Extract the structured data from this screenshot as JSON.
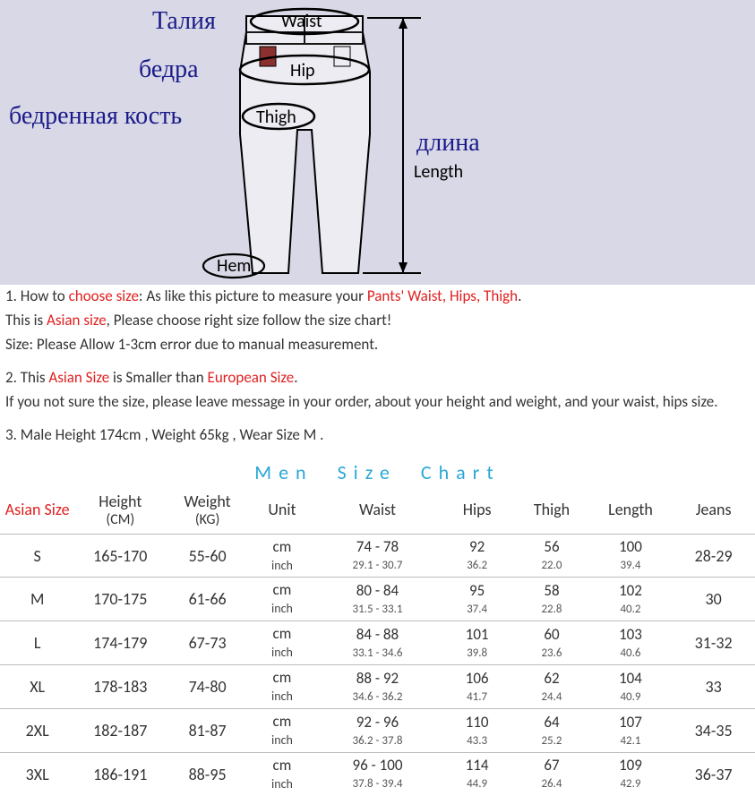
{
  "diagram": {
    "bg": "#d8d8e6",
    "labels": {
      "waist_ru": "Талия",
      "waist_en": "Waist",
      "hip_ru": "бедра",
      "hip_en": "Hip",
      "thigh_ru": "бедренная кость",
      "thigh_en": "Thigh",
      "length_ru": "длина",
      "length_en": "Length",
      "hem_en": "Hem"
    }
  },
  "notes": {
    "n1a": "1. How to ",
    "n1b": "choose size",
    "n1c": ": As like this picture to measure your ",
    "n1d": "Pants' Waist, Hips, Thigh",
    "n1e": ".",
    "n2a": "This is ",
    "n2b": "Asian size",
    "n2c": ", Please choose right size follow the size chart!",
    "n3": "Size: Please Allow 1-3cm error due to manual measurement.",
    "n4a": "2. This ",
    "n4b": "Asian Size",
    "n4c": " is Smaller than ",
    "n4d": "European Size",
    "n4e": ".",
    "n5": "If you not sure the size, please leave message in your order, about your height and weight, and your waist, hips size.",
    "n6": "3. Male Height 174cm , Weight 65kg , Wear Size M ."
  },
  "chart": {
    "title": "Men  Size  Chart",
    "headers": {
      "asian": "Asian Size",
      "height": "Height",
      "height_sub": "(CM)",
      "weight": "Weight",
      "weight_sub": "(KG)",
      "unit": "Unit",
      "waist": "Waist",
      "hips": "Hips",
      "thigh": "Thigh",
      "length": "Length",
      "jeans": "Jeans"
    },
    "unit_cm": "cm",
    "unit_in": "inch",
    "rows": [
      {
        "size": "S",
        "height": "165-170",
        "weight": "55-60",
        "waist_cm": "74 - 78",
        "waist_in": "29.1  -  30.7",
        "hips_cm": "92",
        "hips_in": "36.2",
        "thigh_cm": "56",
        "thigh_in": "22.0",
        "len_cm": "100",
        "len_in": "39.4",
        "jeans": "28-29"
      },
      {
        "size": "M",
        "height": "170-175",
        "weight": "61-66",
        "waist_cm": "80 - 84",
        "waist_in": "31.5  -  33.1",
        "hips_cm": "95",
        "hips_in": "37.4",
        "thigh_cm": "58",
        "thigh_in": "22.8",
        "len_cm": "102",
        "len_in": "40.2",
        "jeans": "30"
      },
      {
        "size": "L",
        "height": "174-179",
        "weight": "67-73",
        "waist_cm": "84 - 88",
        "waist_in": "33.1  -  34.6",
        "hips_cm": "101",
        "hips_in": "39.8",
        "thigh_cm": "60",
        "thigh_in": "23.6",
        "len_cm": "103",
        "len_in": "40.6",
        "jeans": "31-32"
      },
      {
        "size": "XL",
        "height": "178-183",
        "weight": "74-80",
        "waist_cm": "88 - 92",
        "waist_in": "34.6  -  36.2",
        "hips_cm": "106",
        "hips_in": "41.7",
        "thigh_cm": "62",
        "thigh_in": "24.4",
        "len_cm": "104",
        "len_in": "40.9",
        "jeans": "33"
      },
      {
        "size": "2XL",
        "height": "182-187",
        "weight": "81-87",
        "waist_cm": "92 - 96",
        "waist_in": "36.2  -  37.8",
        "hips_cm": "110",
        "hips_in": "43.3",
        "thigh_cm": "64",
        "thigh_in": "25.2",
        "len_cm": "107",
        "len_in": "42.1",
        "jeans": "34-35"
      },
      {
        "size": "3XL",
        "height": "186-191",
        "weight": "88-95",
        "waist_cm": "96 - 100",
        "waist_in": "37.8  -  39.4",
        "hips_cm": "114",
        "hips_in": "44.9",
        "thigh_cm": "67",
        "thigh_in": "26.4",
        "len_cm": "109",
        "len_in": "42.9",
        "jeans": "36-37"
      }
    ]
  }
}
